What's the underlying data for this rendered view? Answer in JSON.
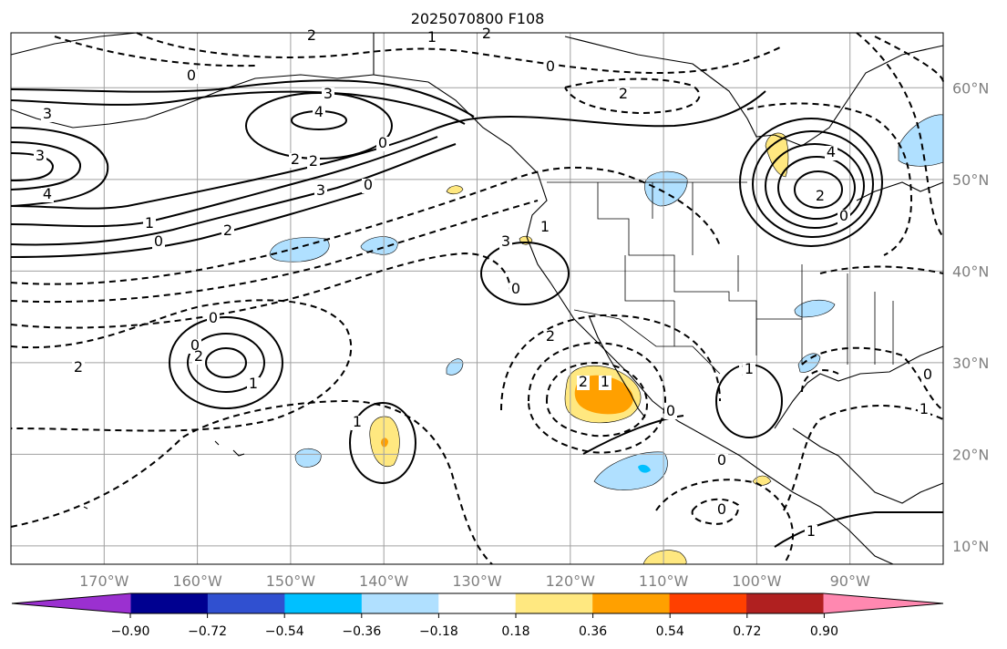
{
  "title": "2025070800 F108",
  "map": {
    "lat_labels": [
      "60°N",
      "50°N",
      "40°N",
      "30°N",
      "20°N",
      "10°N"
    ],
    "lon_labels": [
      "170°W",
      "160°W",
      "150°W",
      "140°W",
      "130°W",
      "120°W",
      "110°W",
      "100°W",
      "90°W"
    ],
    "lon_range": [
      -180,
      -80
    ],
    "lat_range": [
      8,
      66
    ],
    "grid_step_deg": 10,
    "contour_labels": [
      "2",
      "1",
      "2",
      "0",
      "0",
      "3",
      "4",
      "3",
      "3",
      "4",
      "2",
      "2",
      "0",
      "1",
      "0",
      "2",
      "2",
      "3",
      "0",
      "1",
      "3",
      "4",
      "2",
      "0",
      "0",
      "2",
      "0",
      "2",
      "1",
      "2",
      "0",
      "1",
      "2",
      "0",
      "1",
      "1",
      "0",
      "1",
      "0",
      "1",
      "0",
      "1"
    ]
  },
  "colorbar": {
    "ticks": [
      "−0.90",
      "−0.72",
      "−0.54",
      "−0.36",
      "−0.18",
      "0.18",
      "0.36",
      "0.54",
      "0.72",
      "0.90"
    ],
    "colors": {
      "under": "#9b30d0",
      "bins": [
        "#000090",
        "#3050d0",
        "#00c0ff",
        "#b0e0ff",
        "#ffffff",
        "#ffe880",
        "#ffa000",
        "#ff4000",
        "#b02020"
      ],
      "over": "#ff88b0"
    }
  }
}
